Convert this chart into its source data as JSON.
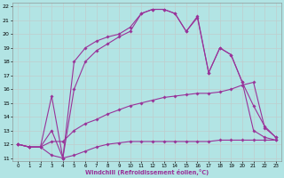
{
  "xlabel": "Windchill (Refroidissement éolien,°C)",
  "bg_color": "#b2e4e4",
  "grid_color": "#c8d8d8",
  "line_color": "#993399",
  "xlim": [
    0,
    23
  ],
  "ylim": [
    11,
    22
  ],
  "xticks": [
    0,
    1,
    2,
    3,
    4,
    5,
    6,
    7,
    8,
    9,
    10,
    11,
    12,
    13,
    14,
    15,
    16,
    17,
    18,
    19,
    20,
    21,
    22,
    23
  ],
  "yticks": [
    11,
    12,
    13,
    14,
    15,
    16,
    17,
    18,
    19,
    20,
    21,
    22
  ],
  "curve1_x": [
    0,
    1,
    2,
    3,
    4,
    5,
    6,
    7,
    8,
    9,
    10,
    11,
    12,
    13,
    14,
    15,
    16,
    17,
    18,
    19,
    20,
    21,
    22,
    23
  ],
  "curve1_y": [
    12.0,
    11.8,
    11.8,
    11.2,
    11.0,
    11.2,
    11.5,
    11.8,
    12.0,
    12.1,
    12.2,
    12.2,
    12.2,
    12.2,
    12.2,
    12.2,
    12.2,
    12.2,
    12.3,
    12.3,
    12.3,
    12.3,
    12.3,
    12.3
  ],
  "curve2_x": [
    0,
    1,
    2,
    3,
    4,
    5,
    6,
    7,
    8,
    9,
    10,
    11,
    12,
    13,
    14,
    15,
    16,
    17,
    18,
    19,
    20,
    21,
    22,
    23
  ],
  "curve2_y": [
    12.0,
    11.8,
    11.8,
    12.2,
    12.2,
    13.0,
    13.5,
    13.8,
    14.2,
    14.5,
    14.8,
    15.0,
    15.2,
    15.4,
    15.5,
    15.6,
    15.7,
    15.7,
    15.8,
    16.0,
    16.3,
    16.5,
    13.2,
    12.5
  ],
  "curve3_x": [
    0,
    1,
    2,
    3,
    4,
    5,
    6,
    7,
    8,
    9,
    10,
    11,
    12,
    13,
    14,
    15,
    16,
    17,
    18,
    19,
    20,
    21,
    22,
    23
  ],
  "curve3_y": [
    12.0,
    11.8,
    11.8,
    13.0,
    11.0,
    16.0,
    18.0,
    18.8,
    19.3,
    19.8,
    20.2,
    21.5,
    21.8,
    21.8,
    21.5,
    20.2,
    21.2,
    17.2,
    19.0,
    18.5,
    16.5,
    14.8,
    13.3,
    12.5
  ],
  "curve4_x": [
    0,
    1,
    2,
    3,
    4,
    5,
    6,
    7,
    8,
    9,
    10,
    11,
    12,
    13,
    14,
    15,
    16,
    17,
    18,
    19,
    20,
    21,
    22,
    23
  ],
  "curve4_y": [
    12.0,
    11.8,
    11.8,
    15.5,
    11.0,
    18.0,
    19.0,
    19.5,
    19.8,
    20.0,
    20.5,
    21.5,
    21.8,
    21.8,
    21.5,
    20.2,
    21.3,
    17.2,
    19.0,
    18.5,
    16.5,
    13.0,
    12.5,
    12.3
  ]
}
